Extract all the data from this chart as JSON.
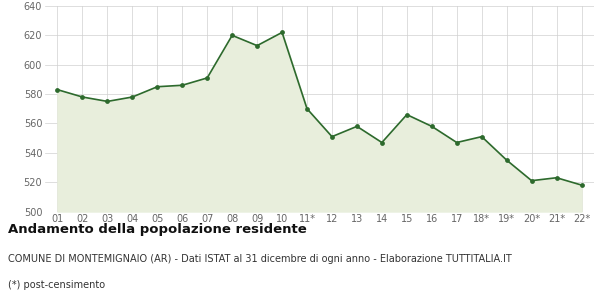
{
  "x_labels": [
    "01",
    "02",
    "03",
    "04",
    "05",
    "06",
    "07",
    "08",
    "09",
    "10",
    "11*",
    "12",
    "13",
    "14",
    "15",
    "16",
    "17",
    "18*",
    "19*",
    "20*",
    "21*",
    "22*"
  ],
  "values": [
    583,
    578,
    575,
    578,
    585,
    586,
    591,
    620,
    613,
    622,
    570,
    551,
    558,
    547,
    566,
    558,
    547,
    551,
    535,
    521,
    523,
    518
  ],
  "ylim": [
    500,
    640
  ],
  "yticks": [
    500,
    520,
    540,
    560,
    580,
    600,
    620,
    640
  ],
  "line_color": "#2d6a2d",
  "fill_color": "#e8eedc",
  "marker_color": "#2d6a2d",
  "bg_color": "#ffffff",
  "grid_color": "#d0d0d0",
  "title": "Andamento della popolazione residente",
  "subtitle": "COMUNE DI MONTEMIGNAIO (AR) - Dati ISTAT al 31 dicembre di ogni anno - Elaborazione TUTTITALIA.IT",
  "footnote": "(*) post-censimento",
  "title_fontsize": 9.5,
  "subtitle_fontsize": 7.0,
  "footnote_fontsize": 7.0,
  "tick_fontsize": 7.0
}
